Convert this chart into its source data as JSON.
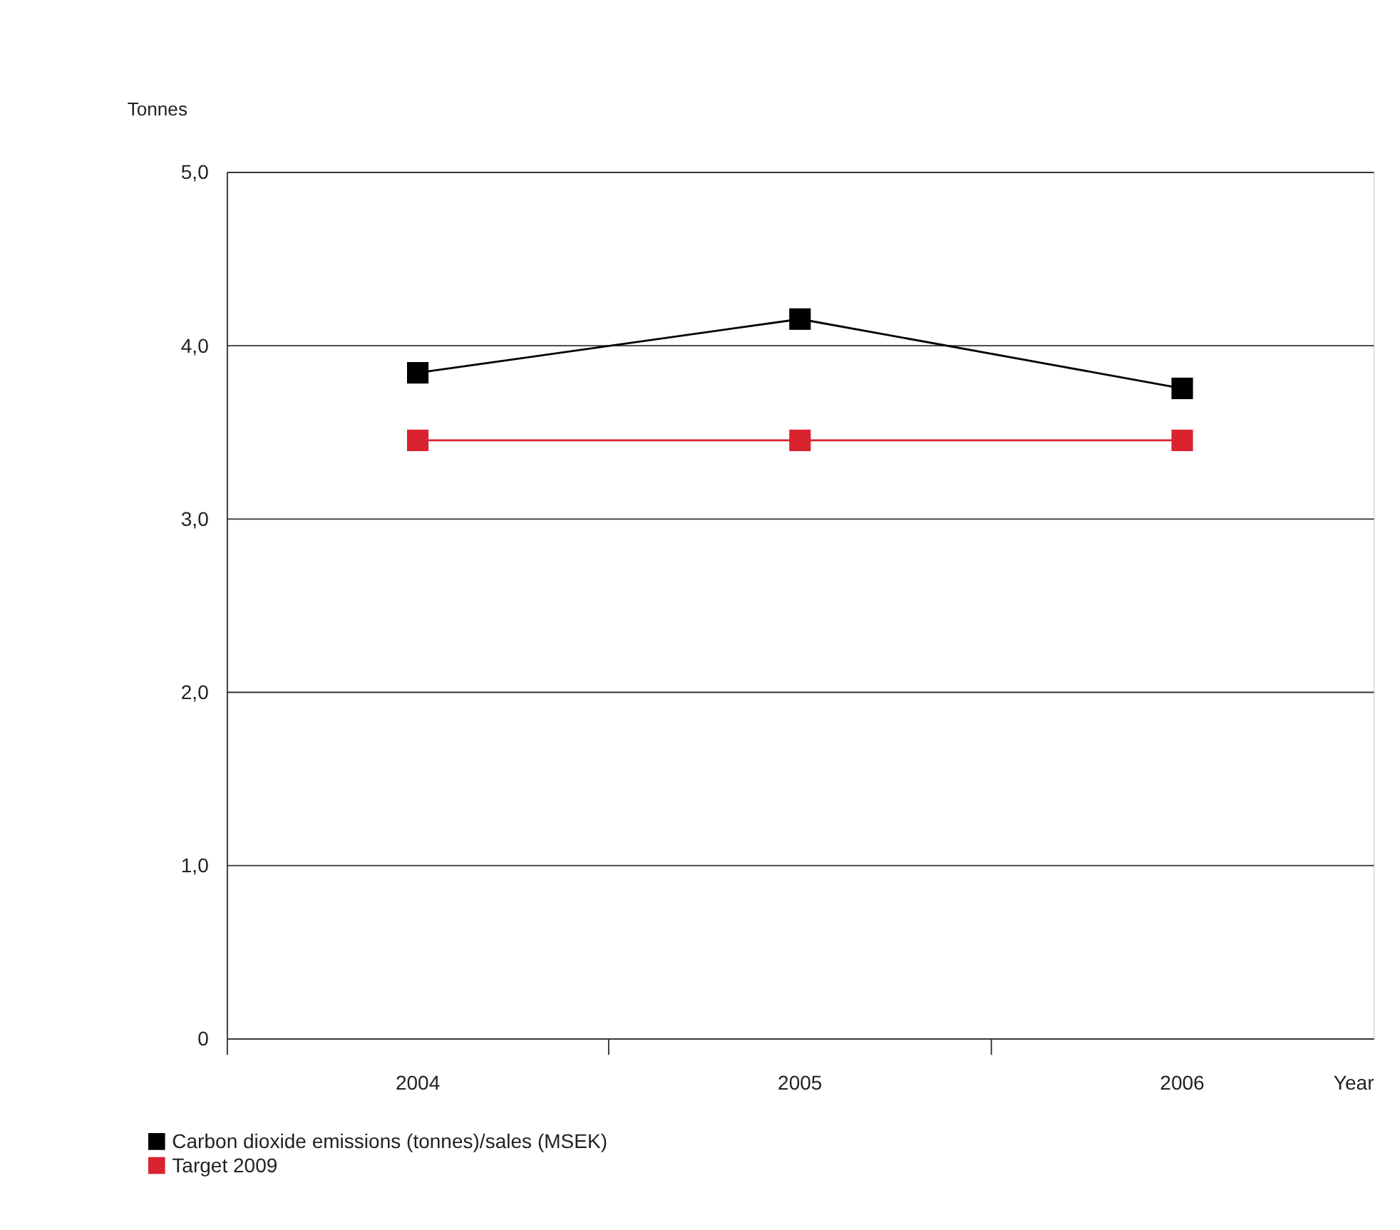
{
  "chart_data": {
    "type": "line",
    "xlabel": "Year",
    "ylabel": "Tonnes",
    "categories": [
      "2004",
      "2005",
      "2006"
    ],
    "series": [
      {
        "name": "Carbon dioxide emissions (tonnes)/sales (MSEK)",
        "color": "#000000",
        "values": [
          3.84,
          4.15,
          3.75
        ]
      },
      {
        "name": "Target 2009",
        "color": "#d9232e",
        "values": [
          3.45,
          3.45,
          3.45
        ]
      }
    ],
    "ylim": [
      0,
      5
    ],
    "yticks": [
      0,
      {
        "value": 1,
        "label": "1,0"
      },
      {
        "value": 2,
        "label": "2,0"
      },
      {
        "value": 3,
        "label": "3,0"
      },
      {
        "value": 4,
        "label": "4,0"
      },
      {
        "value": 5,
        "label": "5,0"
      }
    ],
    "grid": "y",
    "legend": "bottom left",
    "marker": "square",
    "line_style": "solid"
  }
}
